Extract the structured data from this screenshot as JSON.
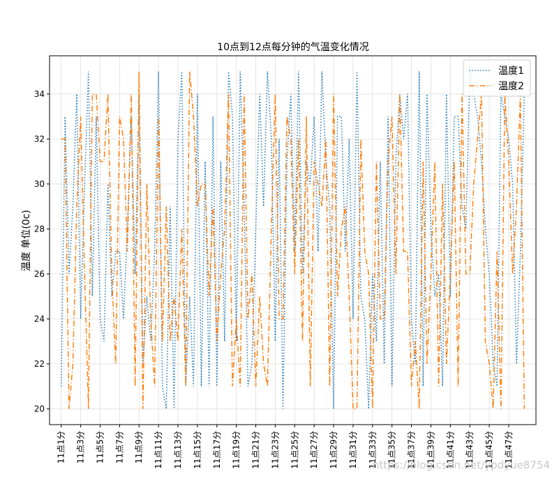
{
  "chart_data": {
    "type": "line",
    "title": "10点到12点每分钟的气温变化情况",
    "xlabel": "",
    "ylabel": "温度 单位(0c)",
    "ylim": [
      19.3,
      35.7
    ],
    "yticks": [
      20,
      22,
      24,
      26,
      28,
      30,
      32,
      34
    ],
    "grid": true,
    "legend_position": "top-right",
    "x_count": 120,
    "x_tick_positions": [
      0,
      10,
      20,
      30,
      40,
      50,
      60,
      70,
      80,
      90,
      100,
      110,
      120,
      130,
      140,
      150,
      160,
      170,
      180,
      190,
      200,
      210,
      220,
      230
    ],
    "x_tick_labels": [
      "11点1分",
      "11点3分",
      "11点5分",
      "11点7分",
      "11点9分",
      "11点11分",
      "11点13分",
      "11点15分",
      "11点17分",
      "11点19分",
      "11点21分",
      "11点23分",
      "11点25分",
      "11点27分",
      "11点29分",
      "11点31分",
      "11点33分",
      "11点35分",
      "11点37分",
      "11点39分",
      "11点41分",
      "11点43分",
      "11点45分",
      "11点47分"
    ],
    "series": [
      {
        "name": "温度1",
        "color": "#1f77b4",
        "dash": "dotted",
        "values": [
          21,
          33,
          26,
          29,
          34,
          24,
          30,
          35,
          25,
          33,
          24,
          23,
          30,
          25,
          27,
          27,
          24,
          28,
          33,
          26,
          34,
          22,
          25,
          23,
          27,
          35,
          21,
          20,
          29,
          20,
          32,
          35,
          21,
          25,
          21,
          34,
          21,
          31,
          21,
          33,
          21,
          31,
          23,
          35,
          33,
          23,
          35,
          29,
          21,
          22,
          28,
          34,
          29,
          35,
          32,
          23,
          32,
          20,
          31,
          34,
          27,
          35,
          26,
          31,
          30,
          33,
          27,
          35,
          31,
          29,
          20,
          33,
          33,
          27,
          32,
          24,
          35,
          25,
          24,
          20,
          26,
          23,
          31,
          22,
          33,
          21,
          31,
          34,
          32,
          34,
          24,
          22,
          35,
          21,
          34,
          28,
          25,
          26,
          21,
          34,
          25,
          33,
          33,
          29,
          28,
          35,
          34,
          33,
          31,
          28,
          26,
          22,
          21,
          34,
          33,
          32,
          30,
          22,
          27,
          34
        ]
      },
      {
        "name": "温度2",
        "color": "#ff7f0e",
        "dash": "dashdot",
        "values": [
          32,
          32,
          20,
          22,
          29,
          33,
          26,
          20,
          34,
          34,
          31,
          31,
          34,
          26,
          22,
          33,
          32,
          27,
          34,
          21,
          35,
          20,
          30,
          24,
          21,
          33,
          23,
          29,
          23,
          25,
          23,
          28,
          21,
          35,
          33,
          29,
          30,
          30,
          25,
          29,
          23,
          26,
          28,
          34,
          21,
          24,
          21,
          34,
          24,
          26,
          21,
          25,
          22,
          21,
          28,
          34,
          24,
          24,
          33,
          32,
          26,
          32,
          23,
          33,
          21,
          31,
          30,
          29,
          32,
          21,
          34,
          25,
          28,
          29,
          25,
          20,
          20,
          32,
          27,
          26,
          20,
          31,
          24,
          24,
          31,
          33,
          26,
          34,
          27,
          27,
          21,
          23,
          20,
          31,
          22,
          26,
          31,
          21,
          30,
          22,
          26,
          31,
          21,
          34,
          26,
          26,
          30,
          32,
          34,
          23,
          22,
          20,
          27,
          20,
          34,
          31,
          26,
          29,
          34,
          20
        ]
      }
    ]
  },
  "watermark": "https://blog.csdn.net/ypdyue8754"
}
